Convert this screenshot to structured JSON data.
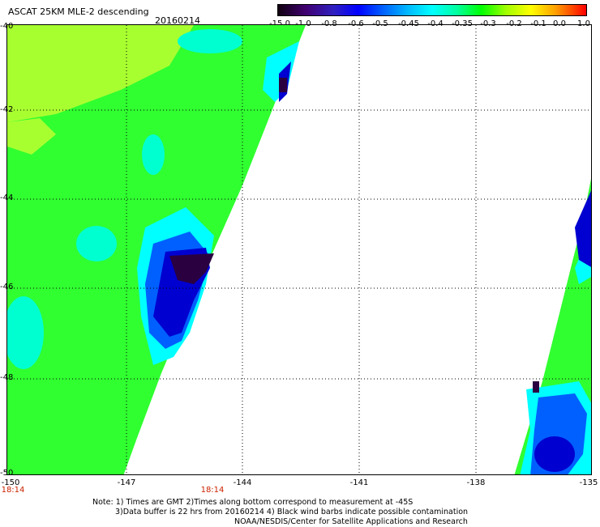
{
  "header": {
    "title": "ASCAT 25KM MLE-2 descending",
    "date": "20160214"
  },
  "colorbar": {
    "labels": [
      "-15.0",
      "-1.0",
      "-0.8",
      "-0.6",
      "-0.5",
      "-0.45",
      "-0.4",
      "-0.35",
      "-0.3",
      "-0.2",
      "-0.1",
      "0.0",
      "1.0"
    ]
  },
  "axes": {
    "lat_labels": [
      "-40",
      "-42",
      "-44",
      "-46",
      "-48",
      "-50"
    ],
    "lon_labels": [
      "-150",
      "-147",
      "-144",
      "-141",
      "-138",
      "-135"
    ],
    "time_labels": [
      "18:14",
      "18:14"
    ]
  },
  "notes": {
    "line1": "Note: 1) Times are GMT 2)Times along bottom correspond to measurement at -45S",
    "line2": "3)Data buffer is 22 hrs from 20160214 4) Black wind barbs indicate possible contamination",
    "line3": "NOAA/NESDIS/Center for Satellite Applications and Research"
  },
  "colors": {
    "dark": "#2a0040",
    "navy": "#0000c8",
    "blue": "#0040ff",
    "cyan": "#00ffff",
    "aqua": "#00ffc0",
    "green": "#20ff20",
    "lime": "#a0ff20"
  }
}
